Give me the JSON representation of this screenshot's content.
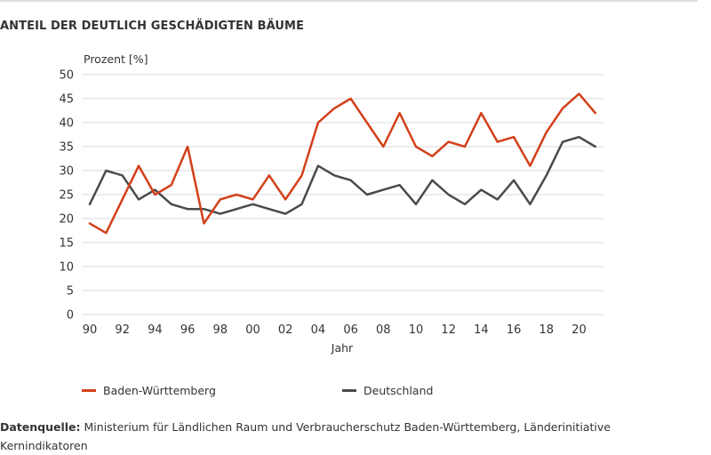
{
  "title": "ANTEIL DER DEUTLICH GESCHÄDIGTEN BÄUME",
  "source": {
    "label": "Datenquelle:",
    "text": " Ministerium für Ländlichen Raum und Verbraucherschutz Baden-Württemberg, Länderinitiative Kernindikatoren"
  },
  "chart_data": {
    "type": "line",
    "title": "ANTEIL DER DEUTLICH GESCHÄDIGTEN BÄUME",
    "xlabel": "Jahr",
    "ylabel": "Prozent [%]",
    "ylim": [
      0,
      50
    ],
    "y_ticks": [
      "0",
      "5",
      "10",
      "15",
      "20",
      "25",
      "30",
      "35",
      "40",
      "45",
      "50"
    ],
    "x_ticks": [
      "90",
      "92",
      "94",
      "96",
      "98",
      "00",
      "02",
      "04",
      "06",
      "08",
      "10",
      "12",
      "14",
      "16",
      "18",
      "20"
    ],
    "x": [
      1990,
      1991,
      1992,
      1993,
      1994,
      1995,
      1996,
      1997,
      1998,
      1999,
      2000,
      2001,
      2002,
      2003,
      2004,
      2005,
      2006,
      2007,
      2008,
      2009,
      2010,
      2011,
      2012,
      2013,
      2014,
      2015,
      2016,
      2017,
      2018,
      2019,
      2020,
      2021
    ],
    "grid": "horizontal",
    "legend_position": "bottom",
    "series": [
      {
        "name": "Baden-Württemberg",
        "color": "#d2401a",
        "values": [
          19,
          17,
          24,
          31,
          25,
          27,
          35,
          19,
          24,
          25,
          24,
          29,
          24,
          29,
          40,
          43,
          45,
          40,
          35,
          42,
          35,
          33,
          36,
          35,
          42,
          36,
          37,
          31,
          38,
          43,
          46,
          42
        ]
      },
      {
        "name": "Deutschland",
        "color": "#4a4a4a",
        "values": [
          23,
          30,
          29,
          24,
          26,
          23,
          22,
          22,
          21,
          22,
          23,
          22,
          21,
          23,
          31,
          29,
          28,
          25,
          26,
          27,
          23,
          28,
          25,
          23,
          26,
          24,
          28,
          23,
          29,
          36,
          37,
          35
        ]
      }
    ]
  }
}
